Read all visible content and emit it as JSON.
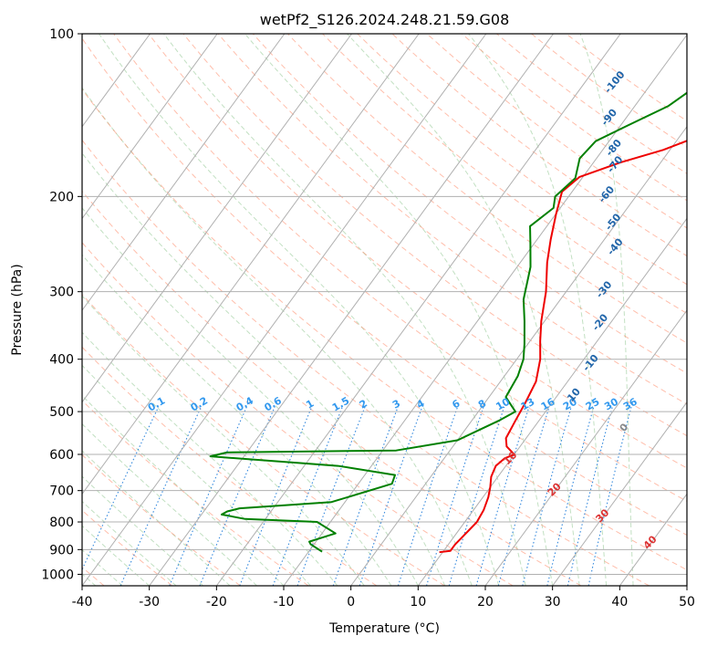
{
  "chart_data": {
    "type": "line",
    "title": "wetPf2_S126.2024.248.21.59.G08",
    "xlabel": "Temperature (°C)",
    "ylabel": "Pressure (hPa)",
    "xlim": [
      -40,
      50
    ],
    "ylim": [
      1050,
      100
    ],
    "y_scale": "log",
    "grid": true,
    "x_ticks": [
      -40,
      -30,
      -20,
      -10,
      0,
      10,
      20,
      30,
      40,
      50
    ],
    "y_ticks": [
      100,
      200,
      300,
      400,
      500,
      600,
      700,
      800,
      900,
      1000
    ],
    "series": [
      {
        "role": "temperature",
        "color": "#ee0000",
        "points": [
          [
            9.5,
            910
          ],
          [
            11.0,
            905
          ],
          [
            11.0,
            880
          ],
          [
            11.2,
            860
          ],
          [
            11.5,
            830
          ],
          [
            11.8,
            800
          ],
          [
            11.5,
            760
          ],
          [
            10.8,
            720
          ],
          [
            10.0,
            690
          ],
          [
            9.0,
            660
          ],
          [
            8.5,
            630
          ],
          [
            9.0,
            610
          ],
          [
            10.0,
            600
          ],
          [
            8.0,
            580
          ],
          [
            7.0,
            560
          ],
          [
            6.5,
            520
          ],
          [
            6.0,
            480
          ],
          [
            5.3,
            440
          ],
          [
            3.5,
            400
          ],
          [
            1.5,
            370
          ],
          [
            -0.5,
            340
          ],
          [
            -3.0,
            300
          ],
          [
            -6.0,
            265
          ],
          [
            -8.0,
            240
          ],
          [
            -10.0,
            215
          ],
          [
            -11.5,
            196
          ],
          [
            -10.5,
            184
          ],
          [
            -6.0,
            173
          ],
          [
            -1.0,
            164
          ],
          [
            4.0,
            152
          ],
          [
            8.0,
            143
          ],
          [
            12.0,
            133
          ],
          [
            14.0,
            126
          ],
          [
            16.0,
            118
          ],
          [
            17.0,
            112
          ],
          [
            18.0,
            105
          ],
          [
            19.0,
            101
          ]
        ]
      },
      {
        "role": "dewpoint",
        "color": "#008000",
        "points": [
          [
            -8.0,
            908
          ],
          [
            -10.5,
            880
          ],
          [
            -11.0,
            870
          ],
          [
            -8.0,
            840
          ],
          [
            -12.0,
            800
          ],
          [
            -23.0,
            790
          ],
          [
            -27.0,
            775
          ],
          [
            -26.5,
            765
          ],
          [
            -25.0,
            755
          ],
          [
            -12.0,
            735
          ],
          [
            -5.0,
            680
          ],
          [
            -5.5,
            655
          ],
          [
            -15.0,
            630
          ],
          [
            -35.0,
            605
          ],
          [
            -33.0,
            595
          ],
          [
            -8.0,
            590
          ],
          [
            0.0,
            565
          ],
          [
            4.0,
            520
          ],
          [
            5.5,
            500
          ],
          [
            2.5,
            470
          ],
          [
            2.0,
            430
          ],
          [
            1.0,
            400
          ],
          [
            -0.5,
            375
          ],
          [
            -3.0,
            340
          ],
          [
            -5.5,
            310
          ],
          [
            -8.0,
            270
          ],
          [
            -10.5,
            245
          ],
          [
            -12.5,
            227
          ],
          [
            -11.0,
            210
          ],
          [
            -12.0,
            200
          ],
          [
            -11.0,
            185
          ],
          [
            -12.5,
            170
          ],
          [
            -12.0,
            158
          ],
          [
            -9.0,
            148
          ],
          [
            -5.0,
            136
          ],
          [
            -3.0,
            125
          ],
          [
            -1.5,
            115
          ],
          [
            0.0,
            105
          ],
          [
            0.5,
            100
          ]
        ]
      }
    ],
    "reference_lines": {
      "dry_adiabats": {
        "color": "#ff8866",
        "labels": [
          "10",
          "20",
          "30",
          "40"
        ]
      },
      "moist_adiabats": {
        "color": "#99cc99",
        "labels": [
          "0",
          "10",
          "-10",
          "-20",
          "-30",
          "-40",
          "-50",
          "-60",
          "-70",
          "-80",
          "-90",
          "-100"
        ]
      },
      "mixing_ratio": {
        "color": "#3388dd",
        "labels": [
          "0.1",
          "0.2",
          "0.4",
          "0.6",
          "1",
          "1.5",
          "2",
          "3",
          "4",
          "6",
          "8",
          "10",
          "13",
          "16",
          "20",
          "25",
          "30",
          "36"
        ]
      }
    },
    "colors": {
      "grid": "#b0b0b0",
      "dry": "#ff8866",
      "moist": "#99cc99",
      "mix": "#3388dd",
      "dry_label": "#dd3333",
      "moist_label": "#2266aa",
      "mix_label": "#3399ee",
      "zero_label": "#888888"
    }
  }
}
